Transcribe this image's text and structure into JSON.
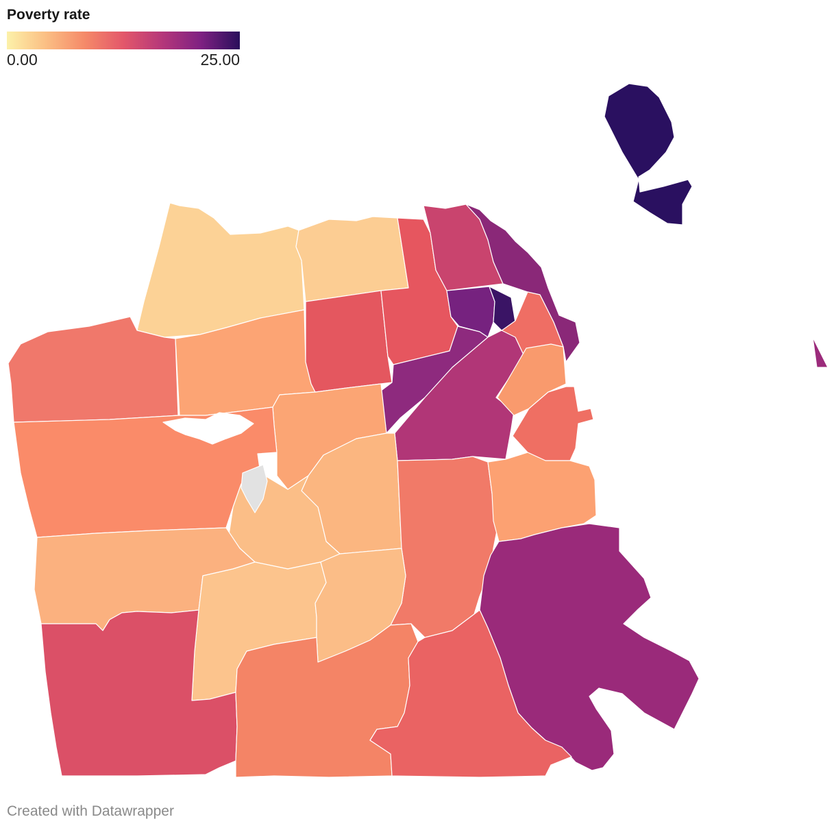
{
  "legend": {
    "title": "Poverty rate",
    "min_label": "0.00",
    "max_label": "25.00",
    "min": 0,
    "max": 25,
    "gradient_colors": [
      "#fcf1a9",
      "#fbbf84",
      "#f58a69",
      "#e3576a",
      "#b5377a",
      "#7e2182",
      "#2a0f5b"
    ],
    "no_data_color": "#e2e2e2"
  },
  "footer": {
    "credit": "Created with Datawrapper"
  }
}
